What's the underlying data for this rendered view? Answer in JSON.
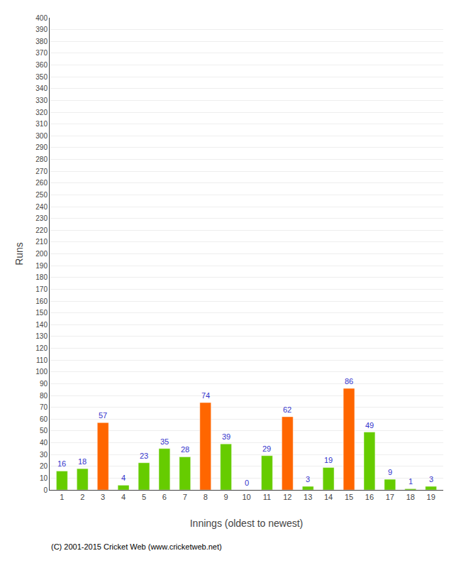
{
  "chart_data": {
    "type": "bar",
    "xlabel": "Innings (oldest to newest)",
    "ylabel": "Runs",
    "categories": [
      1,
      2,
      3,
      4,
      5,
      6,
      7,
      8,
      9,
      10,
      11,
      12,
      13,
      14,
      15,
      16,
      17,
      18,
      19
    ],
    "values": [
      16,
      18,
      57,
      4,
      23,
      35,
      28,
      74,
      39,
      0,
      29,
      62,
      3,
      19,
      86,
      49,
      9,
      1,
      3
    ],
    "colors": [
      "#66cc00",
      "#66cc00",
      "#ff6600",
      "#66cc00",
      "#66cc00",
      "#66cc00",
      "#66cc00",
      "#ff6600",
      "#66cc00",
      "#66cc00",
      "#66cc00",
      "#ff6600",
      "#66cc00",
      "#66cc00",
      "#ff6600",
      "#66cc00",
      "#66cc00",
      "#66cc00",
      "#66cc00"
    ],
    "ylim": [
      0,
      400
    ],
    "yticks": [
      0,
      10,
      20,
      30,
      40,
      50,
      60,
      70,
      80,
      90,
      100,
      110,
      120,
      130,
      140,
      150,
      160,
      170,
      180,
      190,
      200,
      210,
      220,
      230,
      240,
      250,
      260,
      270,
      280,
      290,
      300,
      310,
      320,
      330,
      340,
      350,
      360,
      370,
      380,
      390,
      400
    ],
    "grid": true,
    "data_labels": true,
    "annotations": [
      "(C) 2001-2015 Cricket Web (www.cricketweb.net)"
    ]
  }
}
